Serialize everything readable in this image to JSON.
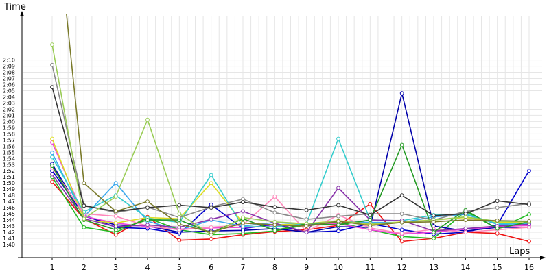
{
  "chart_data": {
    "type": "line",
    "title": "",
    "ylabel": "Time",
    "xlabel": "Laps",
    "x": [
      1,
      2,
      3,
      4,
      5,
      6,
      7,
      8,
      9,
      10,
      11,
      12,
      13,
      14,
      15,
      16
    ],
    "x_ticks": [
      "1",
      "2",
      "3",
      "4",
      "5",
      "6",
      "7",
      "8",
      "9",
      "10",
      "11",
      "12",
      "13",
      "14",
      "15",
      "16"
    ],
    "y_ticks": [
      "1:40",
      "1:41",
      "1:42",
      "1:43",
      "1:44",
      "1:45",
      "1:46",
      "1:47",
      "1:48",
      "1:49",
      "1:50",
      "1:51",
      "1:52",
      "1:53",
      "1:54",
      "1:55",
      "1:56",
      "1:57",
      "1:58",
      "1:59",
      "2:00",
      "2:01",
      "2:02",
      "2:03",
      "2:04",
      "2:05",
      "2:06",
      "2:07",
      "2:08",
      "2:09",
      "2:10"
    ],
    "y_tick_values": [
      100,
      101,
      102,
      103,
      104,
      105,
      106,
      107,
      108,
      109,
      110,
      111,
      112,
      113,
      114,
      115,
      116,
      117,
      118,
      119,
      120,
      121,
      122,
      123,
      124,
      125,
      126,
      127,
      128,
      129,
      130
    ],
    "ylim": [
      99,
      132.5
    ],
    "grid": true,
    "series": [
      {
        "color": "#ee1111",
        "values": [
          110.2,
          104.2,
          101.6,
          104.5,
          100.7,
          100.9,
          101.6,
          102.1,
          102.4,
          103.1,
          106.6,
          100.5,
          101.0,
          102.0,
          101.8,
          100.5
        ]
      },
      {
        "color": "#22bb22",
        "values": [
          111.0,
          102.8,
          102.0,
          104.3,
          102.4,
          101.6,
          101.8,
          102.2,
          103.2,
          103.6,
          102.4,
          101.3,
          101.0,
          105.4,
          102.6,
          104.9
        ]
      },
      {
        "color": "#0000cc",
        "values": [
          112.0,
          104.8,
          102.8,
          102.6,
          101.8,
          106.5,
          102.6,
          103.3,
          102.0,
          102.2,
          103.4,
          102.4,
          101.7,
          102.0,
          103.2,
          112.0
        ]
      },
      {
        "color": "#0000aa",
        "values": [
          113.1,
          104.6,
          103.2,
          103.0,
          102.0,
          102.2,
          102.3,
          102.6,
          102.0,
          102.9,
          102.8,
          124.6,
          103.0,
          102.2,
          102.8,
          102.8
        ]
      },
      {
        "color": "#3aa8ee",
        "values": [
          114.9,
          104.5,
          110.0,
          103.8,
          102.3,
          104.0,
          103.0,
          103.6,
          103.3,
          103.8,
          103.6,
          103.6,
          104.5,
          104.9,
          103.3,
          103.4
        ]
      },
      {
        "color": "#ee44dd",
        "values": [
          116.6,
          104.6,
          103.5,
          102.9,
          102.5,
          102.7,
          102.8,
          103.0,
          103.2,
          103.4,
          102.4,
          101.7,
          102.0,
          102.5,
          102.9,
          103.1
        ]
      },
      {
        "color": "#dddd22",
        "values": [
          117.2,
          104.0,
          103.5,
          104.4,
          104.2,
          110.0,
          103.5,
          103.2,
          103.4,
          103.9,
          103.3,
          103.7,
          104.0,
          104.4,
          103.6,
          103.7
        ]
      },
      {
        "color": "#ff88bb",
        "values": [
          112.5,
          105.0,
          104.6,
          103.0,
          102.4,
          102.8,
          103.2,
          107.8,
          102.1,
          104.8,
          102.7,
          101.8,
          102.5,
          102.0,
          102.4,
          102.8
        ]
      },
      {
        "color": "#33cccc",
        "values": [
          114.2,
          105.3,
          108.0,
          104.3,
          103.6,
          111.3,
          102.9,
          102.9,
          103.4,
          117.2,
          104.0,
          103.9,
          104.8,
          105.0,
          103.4,
          103.5
        ]
      },
      {
        "color": "#8833aa",
        "values": [
          111.4,
          104.2,
          102.9,
          103.2,
          102.8,
          104.1,
          105.4,
          103.5,
          102.0,
          109.2,
          104.0,
          103.9,
          102.2,
          102.6,
          103.0,
          103.3
        ]
      },
      {
        "color": "#229922",
        "values": [
          112.8,
          104.0,
          102.4,
          104.0,
          104.0,
          101.9,
          104.2,
          102.3,
          103.4,
          103.2,
          104.0,
          116.2,
          102.0,
          105.6,
          102.6,
          103.7
        ]
      },
      {
        "color": "#888888",
        "values": [
          129.2,
          106.4,
          105.2,
          106.1,
          104.4,
          106.1,
          107.4,
          105.2,
          104.1,
          104.6,
          105.0,
          105.0,
          104.0,
          105.4,
          106.0,
          106.7
        ]
      },
      {
        "color": "#333333",
        "values": [
          125.6,
          106.3,
          105.4,
          106.0,
          106.4,
          106.0,
          106.9,
          106.1,
          105.6,
          106.4,
          104.8,
          108.0,
          104.7,
          105.0,
          107.1,
          106.5
        ]
      },
      {
        "color": "#99cc55",
        "values": [
          132.5,
          104.2,
          107.8,
          120.3,
          105.0,
          101.6,
          104.4,
          103.7,
          103.4,
          103.8,
          103.4,
          103.6,
          104.0,
          104.5,
          103.8,
          103.7
        ]
      },
      {
        "color": "#7a7a2a",
        "values": [
          160.0,
          110.0,
          105.4,
          107.0,
          103.3,
          102.0,
          103.5,
          103.2,
          103.0,
          103.8,
          103.1,
          103.6,
          103.7,
          104.0,
          103.9,
          103.8
        ]
      }
    ]
  }
}
